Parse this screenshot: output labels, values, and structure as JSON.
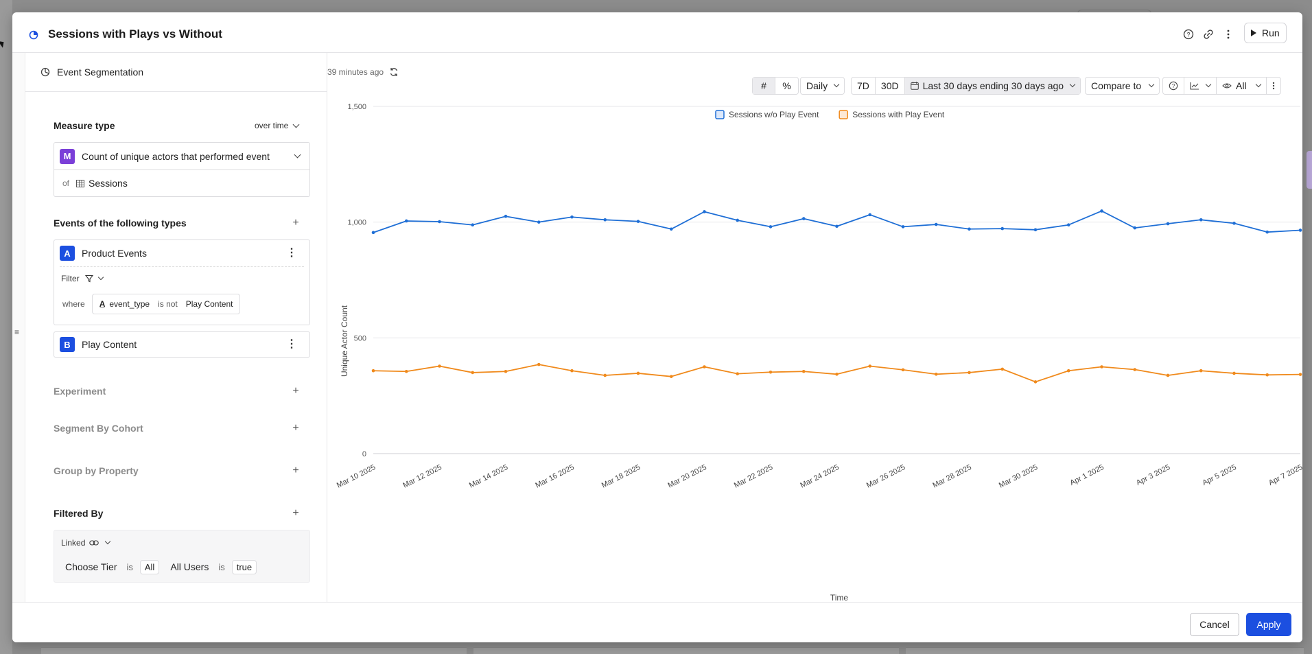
{
  "header": {
    "title": "Sessions with Plays vs Without",
    "run_label": "Run"
  },
  "left": {
    "segmentation_label": "Event Segmentation",
    "measure": {
      "title": "Measure type",
      "mode": "over time",
      "badge": "M",
      "metric": "Count of unique actors that performed event",
      "of_label": "of",
      "entity": "Sessions"
    },
    "events": {
      "title": "Events of the following types",
      "a": {
        "badge": "A",
        "name": "Product Events",
        "filter_label": "Filter",
        "where_label": "where",
        "property": "event_type",
        "operator": "is not",
        "value": "Play Content"
      },
      "b": {
        "badge": "B",
        "name": "Play Content"
      }
    },
    "experiment_title": "Experiment",
    "segment_title": "Segment By Cohort",
    "group_title": "Group by Property",
    "filtered": {
      "title": "Filtered By",
      "linked_label": "Linked",
      "tier_label": "Choose Tier",
      "is1": "is",
      "tier_value": "All",
      "users_label": "All Users",
      "is2": "is",
      "users_value": "true"
    }
  },
  "toolbar": {
    "updated": "39 minutes ago",
    "interval": "Daily",
    "d7": "7D",
    "d30": "30D",
    "range": "Last 30 days ending 30 days ago",
    "compare": "Compare to",
    "visibility": "All"
  },
  "footer": {
    "cancel_label": "Cancel",
    "apply_label": "Apply"
  },
  "colors": {
    "accent": "#1c4fe0",
    "series_blue": "#1f6fd6",
    "series_orange": "#f08a1c",
    "badge_m": "#7b3fd8",
    "badge_ab": "#1c4fe0"
  },
  "chart_data": {
    "type": "line",
    "xlabel": "Time",
    "ylabel": "Unique Actor Count",
    "ylim": [
      0,
      1500
    ],
    "yticks": [
      "0",
      "500",
      "1,000",
      "1,500"
    ],
    "x_tick_labels": [
      "Mar 10 2025",
      "Mar 12 2025",
      "Mar 14 2025",
      "Mar 16 2025",
      "Mar 18 2025",
      "Mar 20 2025",
      "Mar 22 2025",
      "Mar 24 2025",
      "Mar 26 2025",
      "Mar 28 2025",
      "Mar 30 2025",
      "Apr 1 2025",
      "Apr 3 2025",
      "Apr 5 2025",
      "Apr 7 2025"
    ],
    "x": [
      "Mar 10 2025",
      "Mar 11 2025",
      "Mar 12 2025",
      "Mar 13 2025",
      "Mar 14 2025",
      "Mar 15 2025",
      "Mar 16 2025",
      "Mar 17 2025",
      "Mar 18 2025",
      "Mar 19 2025",
      "Mar 20 2025",
      "Mar 21 2025",
      "Mar 22 2025",
      "Mar 23 2025",
      "Mar 24 2025",
      "Mar 25 2025",
      "Mar 26 2025",
      "Mar 27 2025",
      "Mar 28 2025",
      "Mar 29 2025",
      "Mar 30 2025",
      "Mar 31 2025",
      "Apr 1 2025",
      "Apr 2 2025",
      "Apr 3 2025",
      "Apr 4 2025",
      "Apr 5 2025",
      "Apr 6 2025",
      "Apr 7 2025"
    ],
    "legend_position": "top-center",
    "grid": true,
    "series": [
      {
        "name": "Sessions w/o Play Event",
        "color": "#1f6fd6",
        "values": [
          955,
          1005,
          1002,
          988,
          1025,
          1000,
          1022,
          1010,
          1003,
          970,
          1045,
          1008,
          980,
          1015,
          982,
          1032,
          980,
          990,
          970,
          972,
          967,
          988,
          1048,
          975,
          993,
          1010,
          995,
          957,
          965
        ]
      },
      {
        "name": "Sessions with Play Event",
        "color": "#f08a1c",
        "values": [
          358,
          355,
          378,
          350,
          355,
          385,
          358,
          338,
          347,
          333,
          375,
          345,
          352,
          355,
          343,
          378,
          362,
          343,
          350,
          365,
          310,
          358,
          375,
          363,
          338,
          358,
          347,
          340,
          342
        ]
      }
    ]
  }
}
